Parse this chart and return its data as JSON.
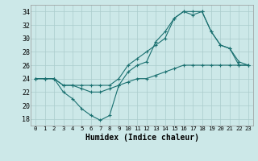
{
  "xlabel": "Humidex (Indice chaleur)",
  "background_color": "#cce8e8",
  "grid_color": "#aacccc",
  "line_color": "#1a7070",
  "xlim": [
    -0.5,
    23.5
  ],
  "ylim": [
    17,
    35
  ],
  "yticks": [
    18,
    20,
    22,
    24,
    26,
    28,
    30,
    32,
    34
  ],
  "xticks": [
    0,
    1,
    2,
    3,
    4,
    5,
    6,
    7,
    8,
    9,
    10,
    11,
    12,
    13,
    14,
    15,
    16,
    17,
    18,
    19,
    20,
    21,
    22,
    23
  ],
  "curve_dip_x": [
    0,
    1,
    2,
    3,
    4,
    5,
    6,
    7,
    8,
    9,
    10,
    11,
    12,
    13,
    14,
    15,
    16,
    17,
    18,
    19,
    20,
    21,
    22,
    23
  ],
  "curve_dip_y": [
    24,
    24,
    24,
    22,
    21,
    19.5,
    18.5,
    17.8,
    18.5,
    23,
    25,
    26,
    26.5,
    29.5,
    31,
    33,
    34,
    34,
    34,
    31,
    29,
    28.5,
    26.5,
    26
  ],
  "curve_flat_x": [
    0,
    1,
    2,
    3,
    4,
    5,
    6,
    7,
    8,
    9,
    10,
    11,
    12,
    13,
    14,
    15,
    16,
    17,
    18,
    19,
    20,
    21,
    22,
    23
  ],
  "curve_flat_y": [
    24,
    24,
    24,
    23,
    23,
    22.5,
    22,
    22,
    22.5,
    23,
    23.5,
    24,
    24,
    24.5,
    25,
    25.5,
    26,
    26,
    26,
    26,
    26,
    26,
    26,
    26
  ],
  "curve_top_x": [
    0,
    1,
    2,
    3,
    4,
    5,
    6,
    7,
    8,
    9,
    10,
    11,
    12,
    13,
    14,
    15,
    16,
    17,
    18,
    19,
    20,
    21,
    22,
    23
  ],
  "curve_top_y": [
    24,
    24,
    24,
    23,
    23,
    23,
    23,
    23,
    23,
    24,
    26,
    27,
    28,
    29,
    30,
    33,
    34,
    33.5,
    34,
    31,
    29,
    28.5,
    26,
    26
  ]
}
